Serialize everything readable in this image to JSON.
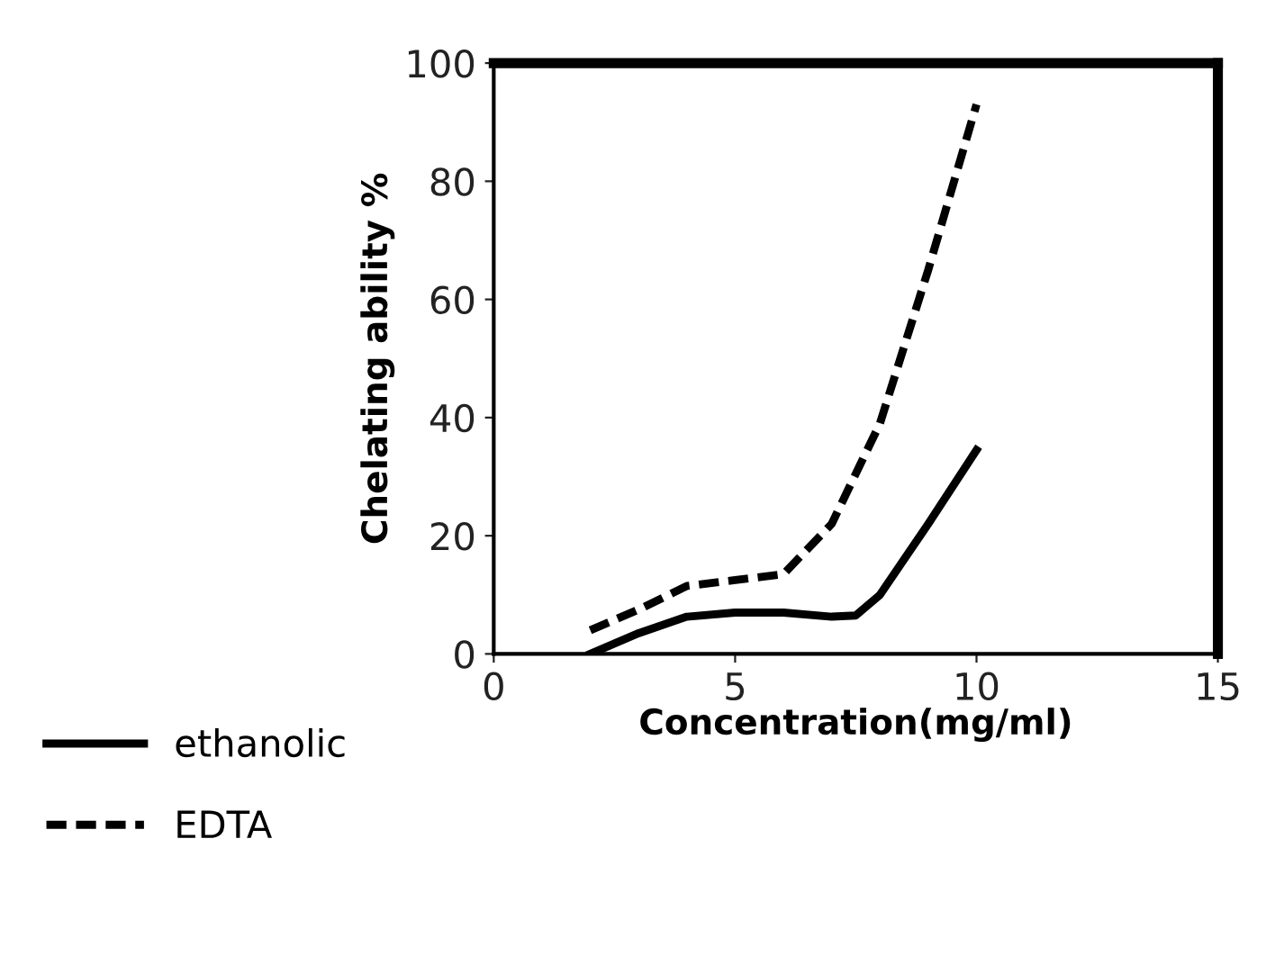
{
  "chart_data": {
    "type": "line",
    "xlabel": "Concentration(mg/ml)",
    "ylabel": "Chelating ability %",
    "xlim": [
      0,
      15
    ],
    "xticks": [
      0,
      5,
      10,
      15
    ],
    "ylim": [
      0,
      100
    ],
    "yticks": [
      0,
      20,
      40,
      60,
      80,
      100
    ],
    "grid": false,
    "legend": "bottom left",
    "series": [
      {
        "name": "ethanolic",
        "color": "#000000",
        "line_style": "solid",
        "x": [
          2,
          3,
          4,
          5,
          6,
          7,
          7.5,
          8,
          9,
          10
        ],
        "values": [
          0,
          3.5,
          6.3,
          7,
          7,
          6.3,
          6.5,
          10,
          22,
          34.5
        ]
      },
      {
        "name": "EDTA",
        "color": "#000000",
        "line_style": "dashed",
        "x": [
          2,
          3,
          4,
          5,
          6,
          7,
          8,
          9,
          10
        ],
        "values": [
          4,
          7.5,
          11.5,
          12.5,
          13.5,
          22,
          39,
          65,
          93
        ]
      }
    ]
  }
}
